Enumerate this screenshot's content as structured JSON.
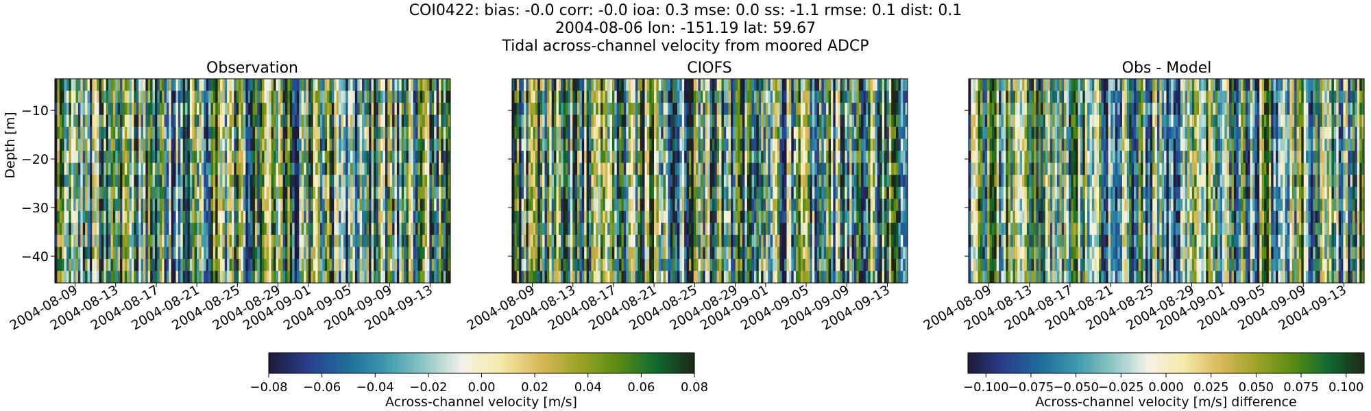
{
  "suptitle": {
    "line1": "COI0422: bias: -0.0  corr: -0.0  ioa: 0.3  mse: 0.0  ss: -1.1  rmse: 0.1  dist: 0.1",
    "line2": "2004-08-06 lon: -151.19 lat: 59.67",
    "line3": "Tidal across-channel velocity from moored ADCP"
  },
  "colors": {
    "colormap": [
      "#1e1a3a",
      "#2a3e8c",
      "#1f6c9a",
      "#3d98ac",
      "#8cc6c3",
      "#f2f2e8",
      "#f5e9a8",
      "#d9b95a",
      "#9da328",
      "#5c8c12",
      "#0f6a30",
      "#1c2716"
    ]
  },
  "chart_data": [
    {
      "type": "heatmap",
      "title": "Observation",
      "ylabel": "Depth [m]",
      "xlabel": "",
      "x_tick_labels": [
        "2004-08-09",
        "2004-08-13",
        "2004-08-17",
        "2004-08-21",
        "2004-08-25",
        "2004-08-29",
        "2004-09-01",
        "2004-09-05",
        "2004-09-09",
        "2004-09-13"
      ],
      "y_ticks": [
        -10,
        -20,
        -30,
        -40
      ],
      "y_tick_labels": [
        "−10",
        "−20",
        "−30",
        "−40"
      ],
      "ylim": [
        -45.5,
        -3.5
      ],
      "xlim": [
        "2004-08-07",
        "2004-09-15"
      ],
      "grid": false,
      "colorbar": "shared-left",
      "seed": 11
    },
    {
      "type": "heatmap",
      "title": "CIOFS",
      "ylabel": "",
      "xlabel": "",
      "x_tick_labels": [
        "2004-08-09",
        "2004-08-13",
        "2004-08-17",
        "2004-08-21",
        "2004-08-25",
        "2004-08-29",
        "2004-09-01",
        "2004-09-05",
        "2004-09-09",
        "2004-09-13"
      ],
      "y_ticks": [
        -10,
        -20,
        -30,
        -40
      ],
      "y_tick_labels": [],
      "ylim": [
        -45.5,
        -3.5
      ],
      "xlim": [
        "2004-08-07",
        "2004-09-15"
      ],
      "grid": false,
      "colorbar": "shared-left",
      "seed": 29
    },
    {
      "type": "heatmap",
      "title": "Obs - Model",
      "ylabel": "",
      "xlabel": "",
      "x_tick_labels": [
        "2004-08-09",
        "2004-08-13",
        "2004-08-17",
        "2004-08-21",
        "2004-08-25",
        "2004-08-29",
        "2004-09-01",
        "2004-09-05",
        "2004-09-09",
        "2004-09-13"
      ],
      "y_ticks": [
        -10,
        -20,
        -30,
        -40
      ],
      "y_tick_labels": [],
      "ylim": [
        -45.5,
        -3.5
      ],
      "xlim": [
        "2004-08-07",
        "2004-09-15"
      ],
      "grid": false,
      "colorbar": "right",
      "seed": 53
    }
  ],
  "colorbars": [
    {
      "label": "Across-channel velocity [m/s]",
      "range": [
        -0.08,
        0.08
      ],
      "ticks": [
        -0.08,
        -0.06,
        -0.04,
        -0.02,
        0.0,
        0.02,
        0.04,
        0.06,
        0.08
      ],
      "tick_labels": [
        "−0.08",
        "−0.06",
        "−0.04",
        "−0.02",
        "0.00",
        "0.02",
        "0.04",
        "0.06",
        "0.08"
      ]
    },
    {
      "label": "Across-channel velocity [m/s] difference",
      "range": [
        -0.11,
        0.11
      ],
      "ticks": [
        -0.1,
        -0.075,
        -0.05,
        -0.025,
        0.0,
        0.025,
        0.05,
        0.075,
        0.1
      ],
      "tick_labels": [
        "−0.100",
        "−0.075",
        "−0.050",
        "−0.025",
        "0.000",
        "0.025",
        "0.050",
        "0.075",
        "0.100"
      ]
    }
  ]
}
